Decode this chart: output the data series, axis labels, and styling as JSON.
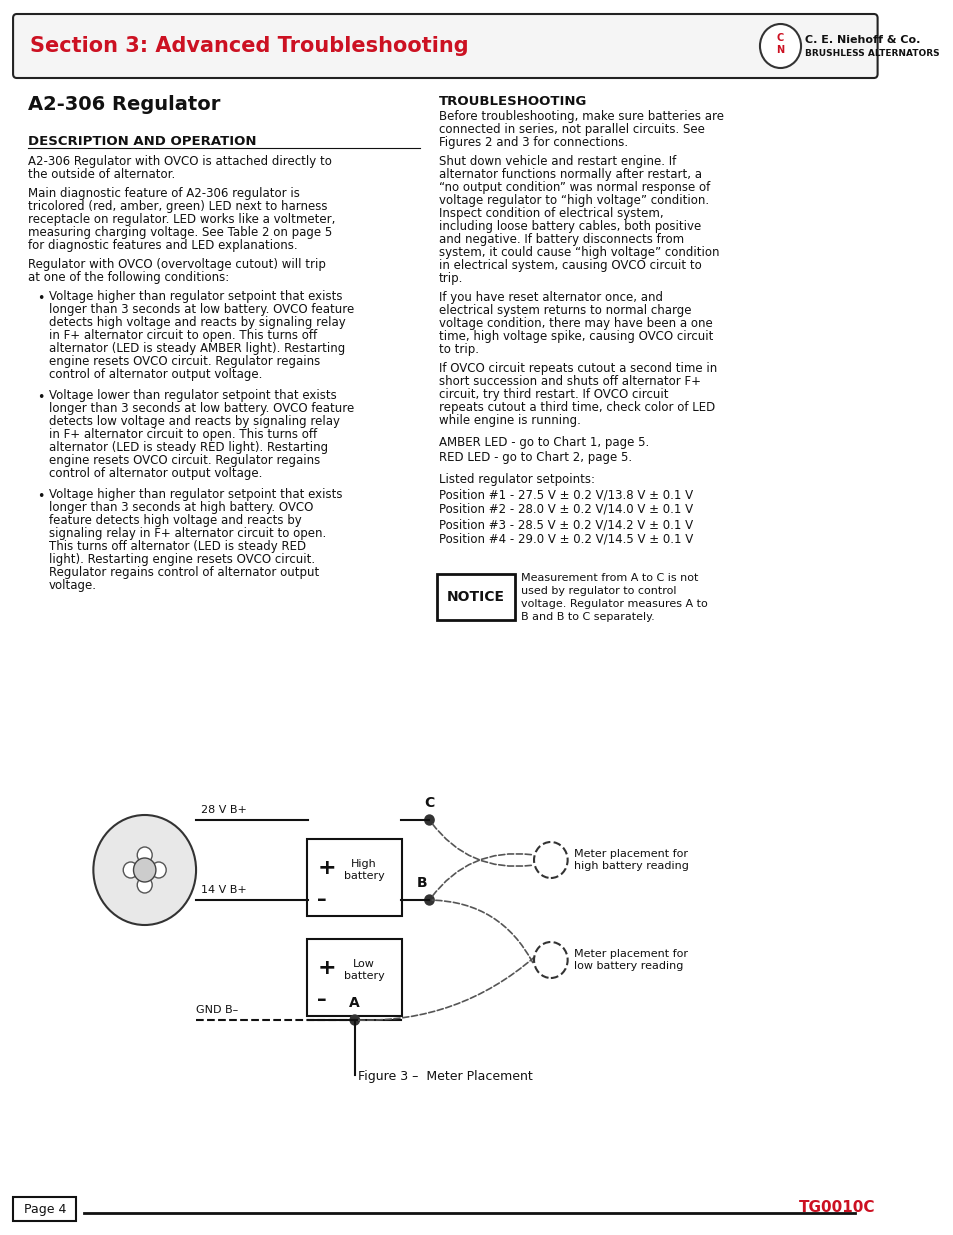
{
  "page_bg": "#ffffff",
  "header_bg": "#ffffff",
  "header_border_bg": "#1a1a1a",
  "header_text": "Section 3: Advanced Troubleshooting",
  "header_text_color": "#cc1122",
  "company_name": "C. E. Niehoff & Co.",
  "company_sub": "BRUSHLESS ALTERNATORS",
  "title": "A2-306 Regulator",
  "section1_header": "DESCRIPTION AND OPERATION",
  "section1_body": [
    "A2-306 Regulator with OVCO is attached directly to the outside of alternator.",
    "Main diagnostic feature of A2-306 regulator is tricolored (red, amber, green) LED next to harness receptacle on regulator. LED works like a voltmeter, measuring charging voltage. See Table 2 on page 5 for diagnostic features and LED explanations.",
    "Regulator with OVCO (overvoltage cutout) will trip at one of the following conditions:"
  ],
  "bullets": [
    "Voltage <b>higher</b> than regulator setpoint that exists longer than 3 seconds at low battery. OVCO feature detects high voltage and reacts by signaling relay in F+ alternator circuit to open. This turns off alternator (LED is steady AMBER light). Restarting engine resets OVCO circuit. Regulator regains control of alternator output voltage.",
    "Voltage <b>lower</b> than regulator setpoint that exists longer than 3 seconds at low battery. OVCO feature detects low voltage and reacts by signaling relay in F+ alternator circuit to open. This turns off alternator (LED is steady RED light). Restarting engine resets OVCO circuit. Regulator regains control of alternator output voltage.",
    "Voltage <b>higher</b> than regulator setpoint that exists longer than 3 seconds at high battery. OVCO feature detects high voltage and reacts by signaling relay in F+ alternator circuit to open. This turns off alternator (LED is steady RED light). Restarting engine resets OVCO circuit. Regulator regains control of alternator output voltage."
  ],
  "section2_header": "TROUBLESHOOTING",
  "section2_body": [
    "Before troubleshooting, make sure batteries are connected in series, not parallel circuits. See Figures 2 and 3 for connections.",
    "Shut down vehicle and restart engine. If alternator functions normally after restart, a “no output condition” was normal response of voltage regulator to “high voltage” condition. Inspect condition of electrical system, including loose battery cables, both positive and negative. If battery disconnects from system, it could cause “high voltage” condition in electrical system, causing OVCO circuit to trip.",
    "If you have reset alternator once, and electrical system returns to normal charge voltage condition, there may have been a one time, high voltage spike, causing OVCO circuit to trip.",
    "If OVCO circuit repeats cutout a second time in short succession and shuts off alternator F+ circuit, try third restart. If OVCO circuit repeats cutout a third time, check color of LED while engine is running.",
    "AMBER LED - go to Chart 1, page 5.",
    "RED LED - go to Chart 2, page 5.",
    "Listed regulator setpoints:",
    "Position #1 - 27.5 V ± 0.2 V/13.8 V ± 0.1 V",
    "Position #2 - 28.0 V ± 0.2 V/14.0 V ± 0.1 V",
    "Position #3 - 28.5 V ± 0.2 V/14.2 V ± 0.1 V",
    "Position #4 - 29.0 V ± 0.2 V/14.5 V ± 0.1 V"
  ],
  "notice_text": "NOTICE",
  "notice_body": "Measurement from A to C is not used by regulator to control voltage. Regulator measures A to B and B to C separately.",
  "figure_caption": "Figure 3 –  Meter Placement",
  "page_label": "Page 4",
  "page_code": "TG0010C",
  "diagram_labels": {
    "28V": "28 V B+",
    "14V": "14 V B+",
    "GND": "GND B–",
    "A": "A",
    "B": "B",
    "C": "C",
    "high_battery_plus": "+",
    "high_battery_minus": "–",
    "high_battery_label": "High\nbattery",
    "low_battery_plus": "+",
    "low_battery_minus": "–",
    "low_battery_label": "Low\nbattery",
    "meter2_label": "Meter placement for\nhigh battery reading",
    "meter1_label": "Meter placement for\nlow battery reading"
  }
}
